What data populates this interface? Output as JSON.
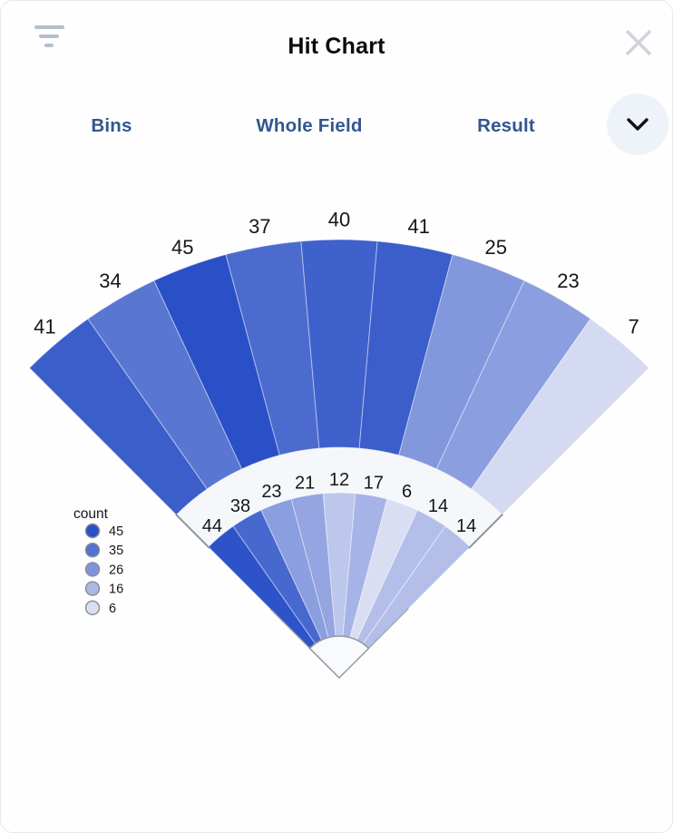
{
  "header": {
    "title": "Hit Chart",
    "filter_icon": "filter-lines-icon",
    "close_icon": "x-icon"
  },
  "tabs": [
    {
      "label": "Bins"
    },
    {
      "label": "Whole Field"
    },
    {
      "label": "Result"
    }
  ],
  "expand_control": {
    "icon": "chevron-down-icon"
  },
  "colors": {
    "tab_text": "#33568e",
    "title_text": "#0b0b0c",
    "filter_icon_gray": "#b4bfc9",
    "close_icon_gray": "#cfd3db",
    "chevron_button_bg": "#eef3fa",
    "chevron_glyph": "#111111",
    "band_fill": "#f5f7fb",
    "hole_fill": "#f8fafc",
    "edge_gray": "#8f949c",
    "wedge_separator": "rgba(255,255,255,0.45)"
  },
  "chart_data": {
    "type": "radial-fan",
    "title": "Hit Chart",
    "description": "Fan-shaped hit distribution chart with two concentric rings of 9 angular bins each, spanning 90 degrees; bin fill color encodes count.",
    "bins_per_ring": 9,
    "angle_span_degrees": 90,
    "outer_ring_values": [
      41,
      34,
      45,
      37,
      40,
      41,
      25,
      23,
      7
    ],
    "inner_ring_values": [
      44,
      38,
      23,
      21,
      12,
      17,
      6,
      14,
      14
    ],
    "legend": {
      "title": "count",
      "entries": [
        {
          "value": 45,
          "color": "#2a50c8"
        },
        {
          "value": 35,
          "color": "#5472d0"
        },
        {
          "value": 26,
          "color": "#7e93db"
        },
        {
          "value": 16,
          "color": "#aab7e7"
        },
        {
          "value": 6,
          "color": "#d9def2"
        }
      ],
      "position": "middle-left"
    }
  }
}
